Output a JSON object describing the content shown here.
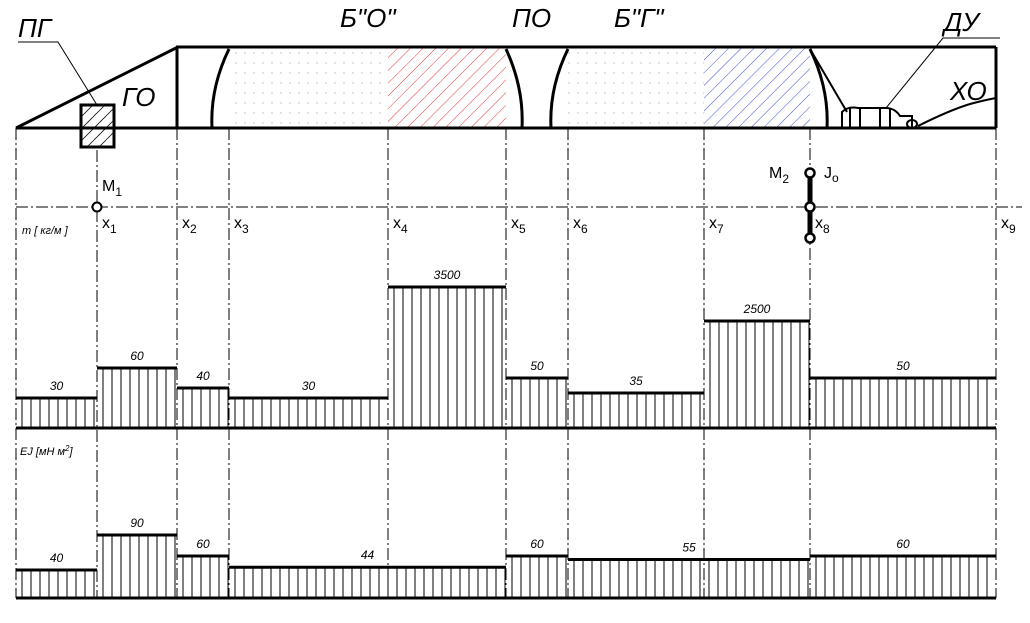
{
  "rocket": {
    "labels": {
      "pg": "ПГ",
      "go": "ГО",
      "bo": "Б\"О\"",
      "po": "ПО",
      "bg": "Б\"Г\"",
      "du": "ДУ",
      "ho": "ХО"
    },
    "fills": {
      "dotted": "#b8b8b8",
      "hatch_red": "#e23a3a",
      "hatch_blue": "#3a4fd0"
    }
  },
  "axis": {
    "m_label": "m [ кг/м ]",
    "ej_label_main": "EJ [мН м",
    "ej_label_sup": "2",
    "ej_label_end": "]",
    "x_ticks": [
      {
        "base": "x",
        "sub": "1"
      },
      {
        "base": "x",
        "sub": "2"
      },
      {
        "base": "x",
        "sub": "3"
      },
      {
        "base": "x",
        "sub": "4"
      },
      {
        "base": "x",
        "sub": "5"
      },
      {
        "base": "x",
        "sub": "6"
      },
      {
        "base": "x",
        "sub": "7"
      },
      {
        "base": "x",
        "sub": "8"
      },
      {
        "base": "x",
        "sub": "9"
      }
    ],
    "masses": [
      {
        "base": "M",
        "sub": "1"
      },
      {
        "base": "M",
        "sub": "2"
      }
    ],
    "inertia": {
      "base": "J",
      "sub": "o"
    }
  },
  "chart_data": [
    {
      "type": "bar",
      "subtype": "step",
      "ylabel": "m [ кг/м ]",
      "categories": [
        "0–x1",
        "x1–x2",
        "x2–x3",
        "x3–x4",
        "x4–x5",
        "x5–x6",
        "x6–x7",
        "x7–x8",
        "x8–x9"
      ],
      "values": [
        30,
        60,
        40,
        30,
        3500,
        50,
        35,
        2500,
        50
      ],
      "value_labels": [
        "30",
        "60",
        "40",
        "30",
        "3500",
        "50",
        "35",
        "2500",
        "50"
      ]
    },
    {
      "type": "bar",
      "subtype": "step",
      "ylabel": "EJ [мН м2]",
      "categories": [
        "0–x1",
        "x1–x2",
        "x2–x3",
        "x3–x5",
        "x5–x6",
        "x6–x8",
        "x8–x9"
      ],
      "values": [
        40,
        90,
        60,
        44,
        60,
        55,
        60
      ],
      "value_labels": [
        "40",
        "90",
        "60",
        "44",
        "60",
        "55",
        "60"
      ]
    }
  ]
}
